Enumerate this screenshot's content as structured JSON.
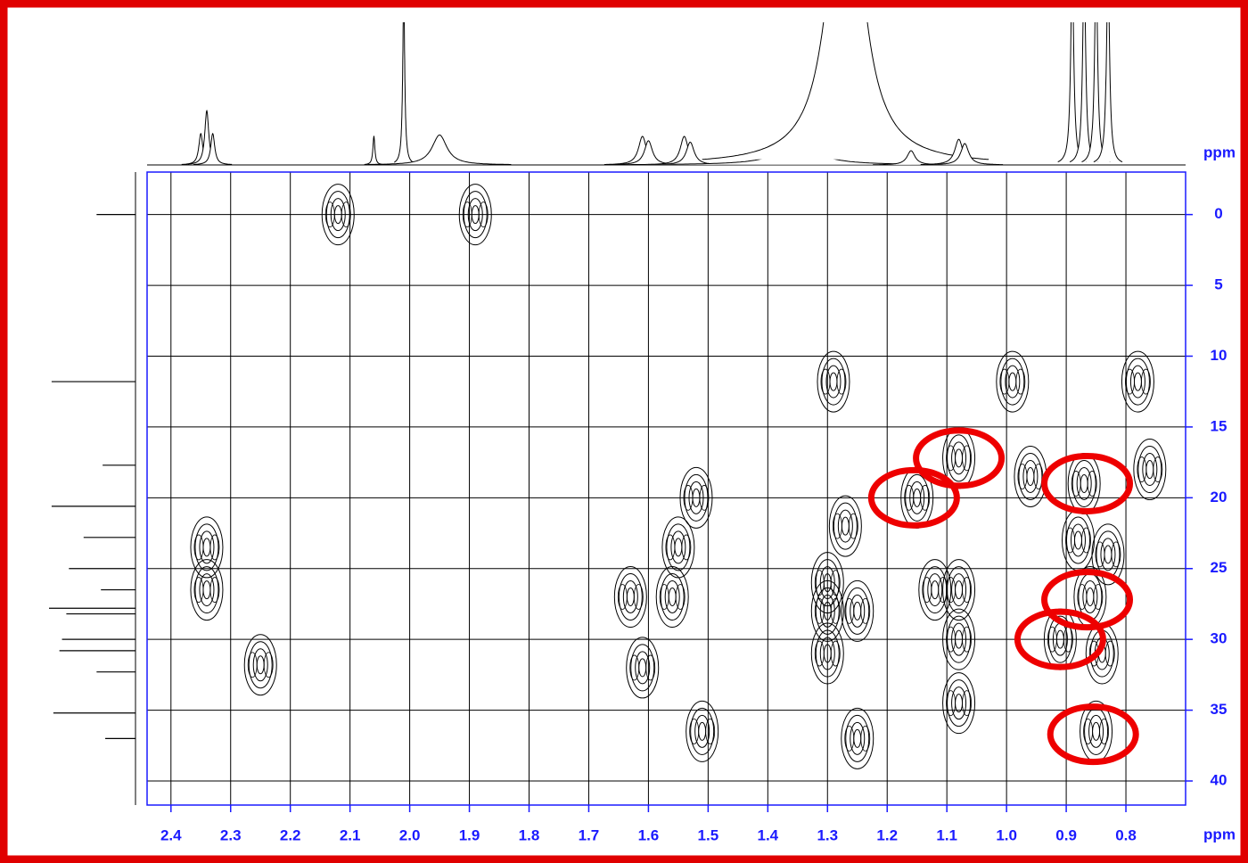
{
  "chart_data": {
    "type": "contour",
    "x_label": "ppm",
    "y_label": "ppm",
    "xlim": [
      2.44,
      0.7
    ],
    "ylim": [
      -3,
      41.7
    ],
    "xticks": [
      2.4,
      2.3,
      2.2,
      2.1,
      {
        "value": 2,
        "label": "2.0"
      },
      1.9,
      1.8,
      1.7,
      1.6,
      1.5,
      1.4,
      1.3,
      1.2,
      1.1,
      {
        "value": 1,
        "label": "1.0"
      },
      0.9,
      0.8
    ],
    "yticks": [
      0,
      5,
      10,
      15,
      20,
      25,
      30,
      35,
      40
    ],
    "grid": true,
    "peaks": {
      "x": [
        2.12,
        1.89,
        2.34,
        2.34,
        2.25,
        1.51,
        1.52,
        1.55,
        1.63,
        1.56,
        1.61,
        1.29,
        0.99,
        0.78,
        1.27,
        1.3,
        1.3,
        1.25,
        1.3,
        1.25,
        1.15,
        1.08,
        1.12,
        1.08,
        1.08,
        1.08,
        0.87,
        0.86,
        0.91,
        0.85,
        0.84,
        0.88,
        0.76,
        0.96,
        0.83
      ],
      "y": [
        0,
        0,
        23.5,
        26.5,
        31.8,
        36.5,
        20,
        23.5,
        27,
        27,
        32,
        11.8,
        11.8,
        11.8,
        22,
        26,
        28,
        28,
        31,
        37,
        20,
        17.2,
        26.5,
        26.5,
        30,
        34.5,
        19,
        27,
        30,
        36.5,
        31,
        23,
        18,
        18.5,
        24
      ]
    },
    "highlights": {
      "x": [
        1.08,
        1.155,
        0.865,
        0.865,
        0.91,
        0.855
      ],
      "y": [
        17.2,
        20,
        19,
        27.2,
        30,
        36.7
      ],
      "color": "#ee0000"
    },
    "top_projection": {
      "x": [
        2.35,
        2.34,
        2.33,
        2.06,
        2.01,
        1.95,
        1.61,
        1.6,
        1.54,
        1.53,
        1.35,
        1.27,
        1.16,
        1.08,
        1.07,
        0.89,
        0.87,
        0.85,
        0.83
      ],
      "height": [
        22,
        38,
        22,
        20,
        120,
        21,
        20,
        17,
        20,
        16,
        14,
        250,
        10,
        18,
        15,
        140,
        140,
        140,
        140
      ],
      "width": [
        0.004,
        0.004,
        0.004,
        0.002,
        0.002,
        0.015,
        0.008,
        0.008,
        0.008,
        0.008,
        0.04,
        0.03,
        0.008,
        0.008,
        0.008,
        0.003,
        0.003,
        0.003,
        0.003
      ]
    },
    "left_projection": {
      "y": [
        0,
        11.8,
        17.7,
        20.6,
        22.8,
        25,
        26.5,
        27.8,
        28.2,
        30,
        30.8,
        32.3,
        35.2,
        37
      ],
      "height": [
        45,
        97,
        38,
        97,
        60,
        77,
        40,
        100,
        80,
        85,
        88,
        45,
        95,
        35
      ]
    }
  }
}
